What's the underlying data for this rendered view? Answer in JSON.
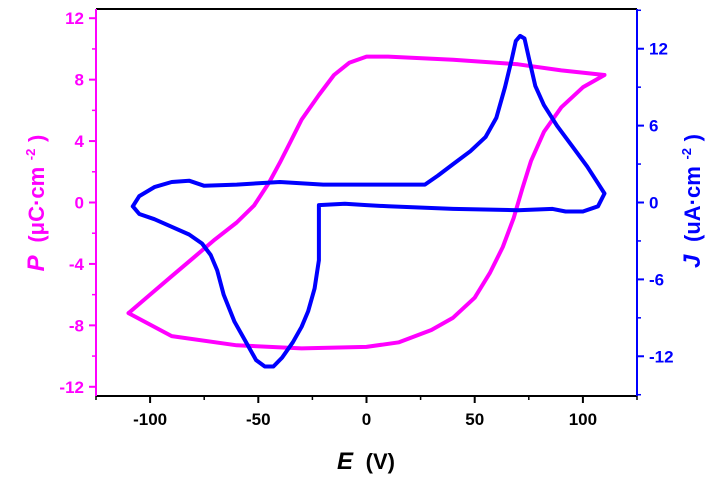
{
  "chart_data": {
    "type": "line",
    "colors": {
      "P": "#ff00ff",
      "J": "#0000ff",
      "axis": "#000000"
    },
    "x_axis": {
      "title_symbol": "E",
      "title_unit": "(V)",
      "lim": [
        -125,
        125
      ],
      "ticks": [
        -100,
        -50,
        0,
        50,
        100
      ],
      "tick_labels": [
        "-100",
        "-50",
        "0",
        "50",
        "100"
      ]
    },
    "y_left": {
      "title_symbol": "P",
      "title_unit": "(μC·cm",
      "title_sup": "-2",
      "title_close": ")",
      "lim": [
        -12.6,
        12.6
      ],
      "ticks": [
        -12,
        -8,
        -4,
        0,
        4,
        8,
        12
      ],
      "tick_labels": [
        "-12",
        "-8",
        "-4",
        "0",
        "4",
        "8",
        "12"
      ]
    },
    "y_right": {
      "title_symbol": "J",
      "title_unit": "(uA·cm",
      "title_sup": "-2",
      "title_close": ")",
      "lim": [
        -15.1,
        15.1
      ],
      "ticks": [
        -12,
        -6,
        0,
        6,
        12
      ],
      "tick_labels": [
        "-12",
        "-6",
        "0",
        "6",
        "12"
      ]
    },
    "series": [
      {
        "axis": "left",
        "color": "#ff00ff",
        "points": [
          [
            -110,
            -7.2
          ],
          [
            -100,
            -6.0
          ],
          [
            -90,
            -4.8
          ],
          [
            -80,
            -3.6
          ],
          [
            -70,
            -2.4
          ],
          [
            -60,
            -1.3
          ],
          [
            -52,
            -0.2
          ],
          [
            -45,
            1.3
          ],
          [
            -40,
            2.6
          ],
          [
            -35,
            4.0
          ],
          [
            -30,
            5.4
          ],
          [
            -22,
            7.0
          ],
          [
            -15,
            8.3
          ],
          [
            -8,
            9.1
          ],
          [
            0,
            9.5
          ],
          [
            10,
            9.5
          ],
          [
            40,
            9.3
          ],
          [
            70,
            9.0
          ],
          [
            90,
            8.6
          ],
          [
            110,
            8.3
          ],
          [
            100,
            7.5
          ],
          [
            90,
            6.2
          ],
          [
            82,
            4.6
          ],
          [
            76,
            2.7
          ],
          [
            72,
            0.9
          ],
          [
            68,
            -1.0
          ],
          [
            63,
            -2.9
          ],
          [
            57,
            -4.6
          ],
          [
            50,
            -6.2
          ],
          [
            40,
            -7.5
          ],
          [
            30,
            -8.3
          ],
          [
            15,
            -9.1
          ],
          [
            0,
            -9.4
          ],
          [
            -30,
            -9.5
          ],
          [
            -60,
            -9.3
          ],
          [
            -90,
            -8.7
          ],
          [
            -110,
            -7.2
          ]
        ]
      },
      {
        "axis": "right",
        "color": "#0000ff",
        "points": [
          [
            -108,
            -0.3
          ],
          [
            -105,
            0.5
          ],
          [
            -98,
            1.2
          ],
          [
            -90,
            1.6
          ],
          [
            -82,
            1.7
          ],
          [
            -75,
            1.3
          ],
          [
            -60,
            1.4
          ],
          [
            -40,
            1.6
          ],
          [
            -20,
            1.4
          ],
          [
            0,
            1.4
          ],
          [
            27,
            1.4
          ],
          [
            33,
            2.1
          ],
          [
            40,
            3.0
          ],
          [
            48,
            4.0
          ],
          [
            55,
            5.1
          ],
          [
            60,
            6.6
          ],
          [
            64,
            9.0
          ],
          [
            67,
            11.1
          ],
          [
            69,
            12.6
          ],
          [
            71,
            13.0
          ],
          [
            73,
            12.8
          ],
          [
            75,
            11.3
          ],
          [
            78,
            9.1
          ],
          [
            82,
            7.6
          ],
          [
            88,
            6.0
          ],
          [
            95,
            4.4
          ],
          [
            102,
            2.8
          ],
          [
            107,
            1.5
          ],
          [
            110,
            0.7
          ],
          [
            107,
            -0.3
          ],
          [
            100,
            -0.7
          ],
          [
            92,
            -0.7
          ],
          [
            86,
            -0.5
          ],
          [
            70,
            -0.6
          ],
          [
            40,
            -0.5
          ],
          [
            10,
            -0.3
          ],
          [
            0,
            -0.2
          ],
          [
            -10,
            -0.1
          ],
          [
            -22,
            -0.2
          ],
          [
            -22,
            -4.5
          ],
          [
            -24,
            -6.7
          ],
          [
            -27,
            -8.5
          ],
          [
            -30,
            -9.7
          ],
          [
            -34,
            -10.9
          ],
          [
            -39,
            -12.1
          ],
          [
            -43,
            -12.8
          ],
          [
            -47,
            -12.8
          ],
          [
            -51,
            -12.3
          ],
          [
            -56,
            -10.8
          ],
          [
            -61,
            -9.3
          ],
          [
            -66,
            -7.2
          ],
          [
            -69,
            -5.3
          ],
          [
            -72,
            -4.1
          ],
          [
            -76,
            -3.2
          ],
          [
            -82,
            -2.5
          ],
          [
            -90,
            -1.9
          ],
          [
            -98,
            -1.3
          ],
          [
            -105,
            -0.9
          ],
          [
            -108,
            -0.3
          ]
        ]
      }
    ]
  }
}
